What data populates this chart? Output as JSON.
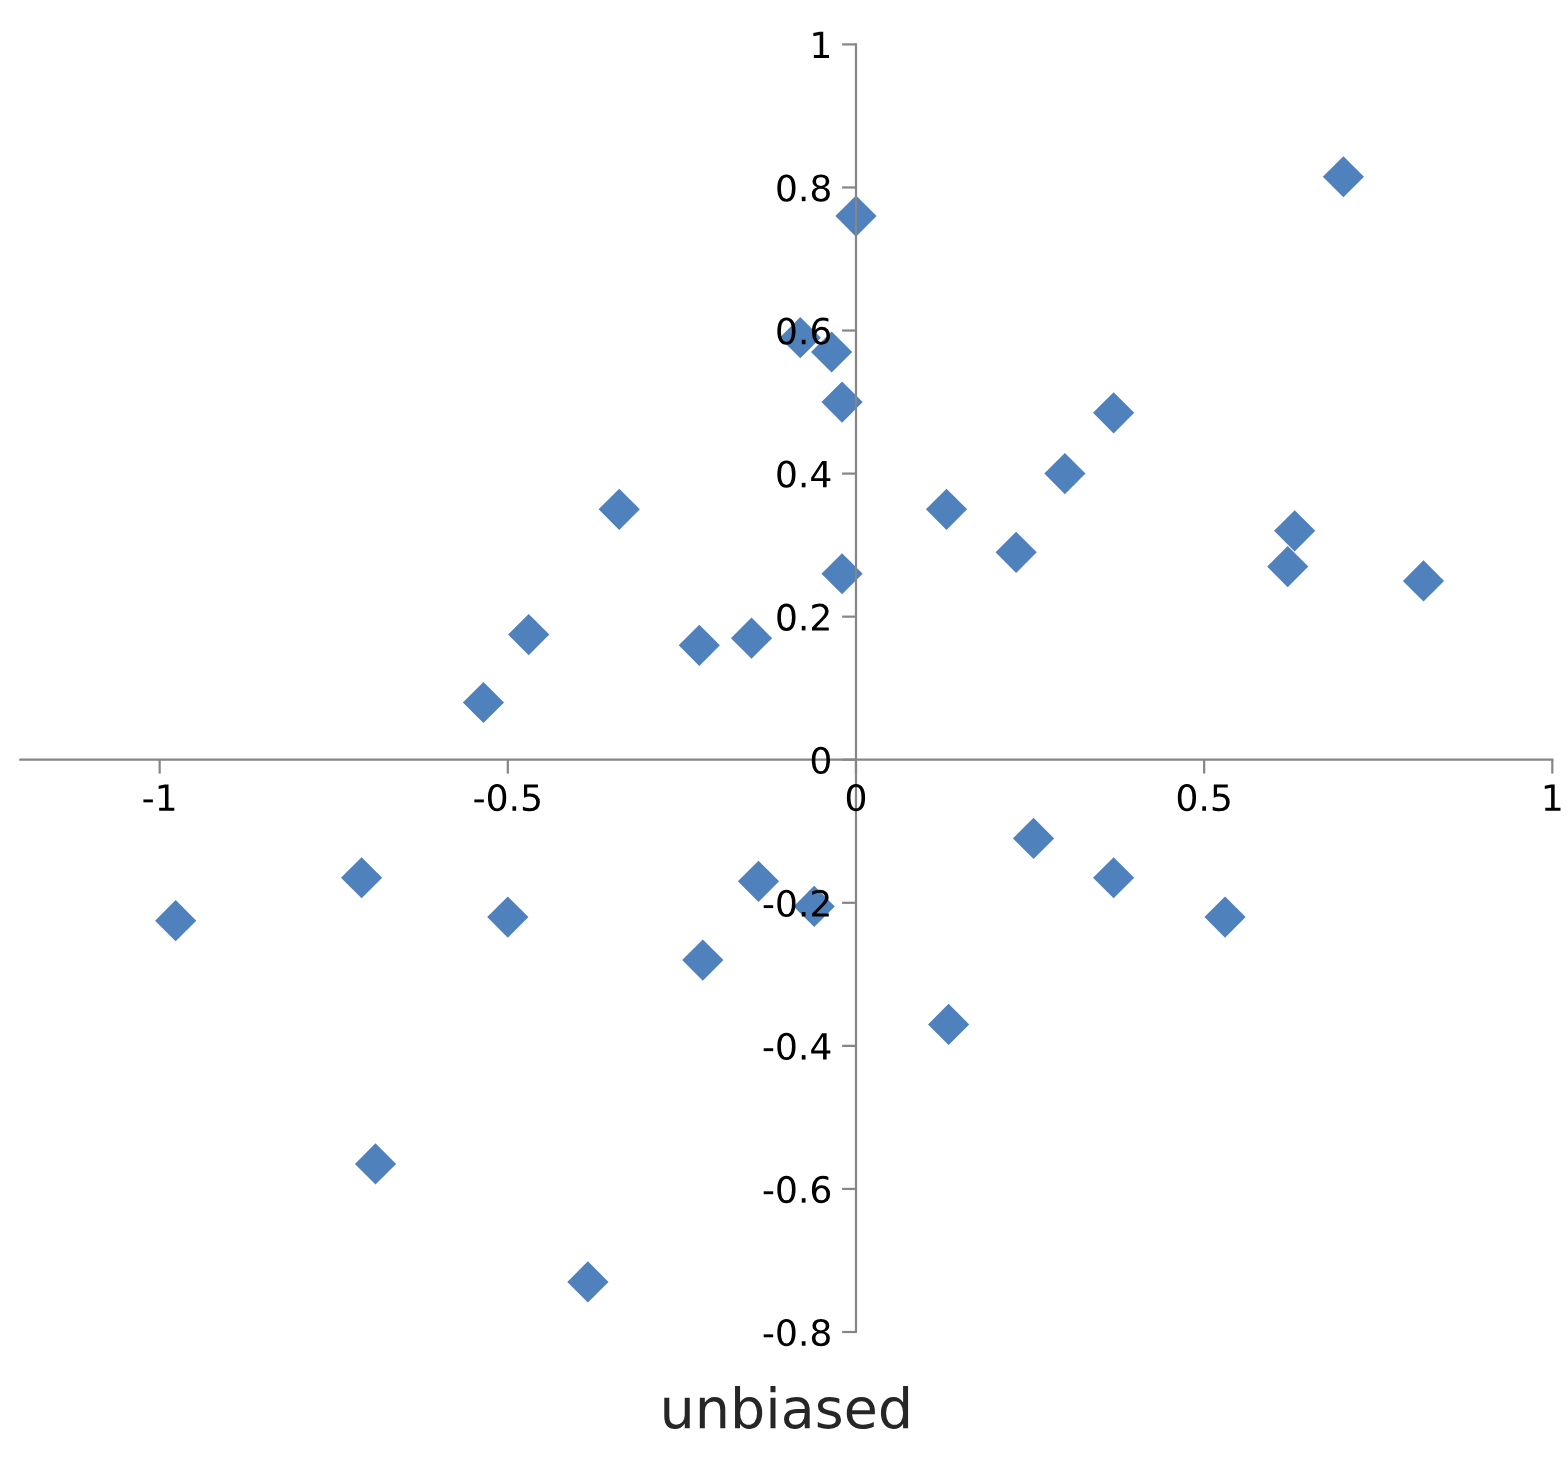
{
  "chart_data": {
    "type": "scatter",
    "xlabel": "unbiased",
    "x": [
      0.7,
      0.0,
      -0.08,
      -0.035,
      -0.02,
      0.37,
      0.3,
      -0.34,
      0.13,
      0.63,
      0.23,
      0.62,
      -0.02,
      0.815,
      -0.47,
      -0.15,
      -0.225,
      -0.535,
      0.255,
      -0.71,
      -0.14,
      0.37,
      -0.06,
      -0.977,
      -0.5,
      0.53,
      -0.22,
      0.133,
      -0.69,
      -0.385
    ],
    "series": [
      {
        "color": "#4f81bd",
        "values": [
          0.815,
          0.76,
          0.59,
          0.57,
          0.5,
          0.485,
          0.4,
          0.35,
          0.35,
          0.32,
          0.29,
          0.27,
          0.26,
          0.25,
          0.175,
          0.17,
          0.16,
          0.08,
          -0.11,
          -0.165,
          -0.17,
          -0.165,
          -0.205,
          -0.225,
          -0.22,
          -0.22,
          -0.28,
          -0.37,
          -0.565,
          -0.73
        ]
      }
    ],
    "xlim": [
      -1.2,
      1
    ],
    "ylim": [
      -0.8,
      1
    ],
    "xticks": [
      -1,
      -0.5,
      0,
      0.5,
      1
    ],
    "yticks": [
      -0.8,
      -0.6,
      -0.4,
      -0.2,
      0,
      0.2,
      0.4,
      0.6,
      0.8,
      1
    ],
    "marker": "diamond",
    "grid": false,
    "legend": false
  }
}
